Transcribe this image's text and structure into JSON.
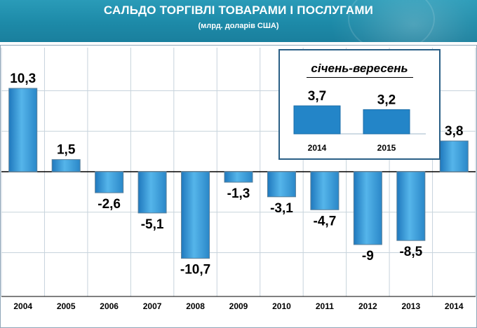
{
  "header": {
    "title": "САЛЬДО ТОРГІВЛІ ТОВАРАМИ І ПОСЛУГАМИ",
    "subtitle": "(млрд. доларів США)"
  },
  "chart_data": [
    {
      "type": "bar",
      "title": "САЛЬДО ТОРГІВЛІ ТОВАРАМИ І ПОСЛУГАМИ",
      "subtitle": "(млрд. доларів США)",
      "categories": [
        "2004",
        "2005",
        "2006",
        "2007",
        "2008",
        "2009",
        "2010",
        "2011",
        "2012",
        "2013",
        "2014"
      ],
      "values": [
        10.3,
        1.5,
        -2.6,
        -5.1,
        -10.7,
        -1.3,
        -3.1,
        -4.7,
        -9,
        -8.5,
        3.8
      ],
      "value_labels": [
        "10,3",
        "1,5",
        "-2,6",
        "-5,1",
        "-10,7",
        "-1,3",
        "-3,1",
        "-4,7",
        "-9",
        "-8,5",
        "3,8"
      ],
      "ylim": [
        -11,
        10.5
      ],
      "grid": true,
      "bar_color": "#3a9ad8"
    },
    {
      "type": "bar",
      "title": "січень-вересень",
      "categories": [
        "2014",
        "2015"
      ],
      "values": [
        3.7,
        3.2
      ],
      "value_labels": [
        "3,7",
        "3,2"
      ],
      "ylim": [
        0,
        3.7
      ],
      "bar_color": "#2385c8"
    }
  ]
}
